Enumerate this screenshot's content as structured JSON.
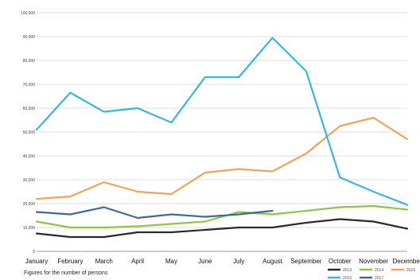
{
  "chart_data": {
    "type": "line",
    "caption": "Figures for the number of persons",
    "categories": [
      "January",
      "February",
      "March",
      "April",
      "May",
      "June",
      "July",
      "August",
      "September",
      "October",
      "November",
      "December"
    ],
    "yticks": [
      "0",
      "10,000",
      "20,000",
      "30,000",
      "40,000",
      "50,000",
      "60,000",
      "70,000",
      "80,000",
      "90,000",
      "100,000"
    ],
    "ylim": [
      0,
      100000
    ],
    "grid": true,
    "legend_position": "bottom-right",
    "series": [
      {
        "name": "2013",
        "color": "#2a2a2a",
        "values": [
          7500,
          6000,
          6000,
          8000,
          8000,
          9000,
          10000,
          10000,
          12000,
          13500,
          12500,
          9500
        ]
      },
      {
        "name": "2014",
        "color": "#8dc63f",
        "values": [
          12500,
          10000,
          10000,
          10500,
          11500,
          12500,
          16500,
          15500,
          17000,
          18500,
          19000,
          17500
        ]
      },
      {
        "name": "2015",
        "color": "#f0a35e",
        "values": [
          22000,
          23000,
          29000,
          25000,
          24000,
          33000,
          34500,
          33500,
          41000,
          52500,
          56000,
          47000
        ]
      },
      {
        "name": "2016",
        "color": "#3ab5dc",
        "values": [
          51000,
          66500,
          58500,
          60000,
          54000,
          73000,
          73000,
          89500,
          75500,
          31000,
          25000,
          19500
        ]
      },
      {
        "name": "2017",
        "color": "#3c6aa0",
        "values": [
          16500,
          15500,
          18500,
          14000,
          15500,
          14500,
          15500,
          17000,
          null,
          null,
          null,
          null
        ]
      }
    ]
  }
}
